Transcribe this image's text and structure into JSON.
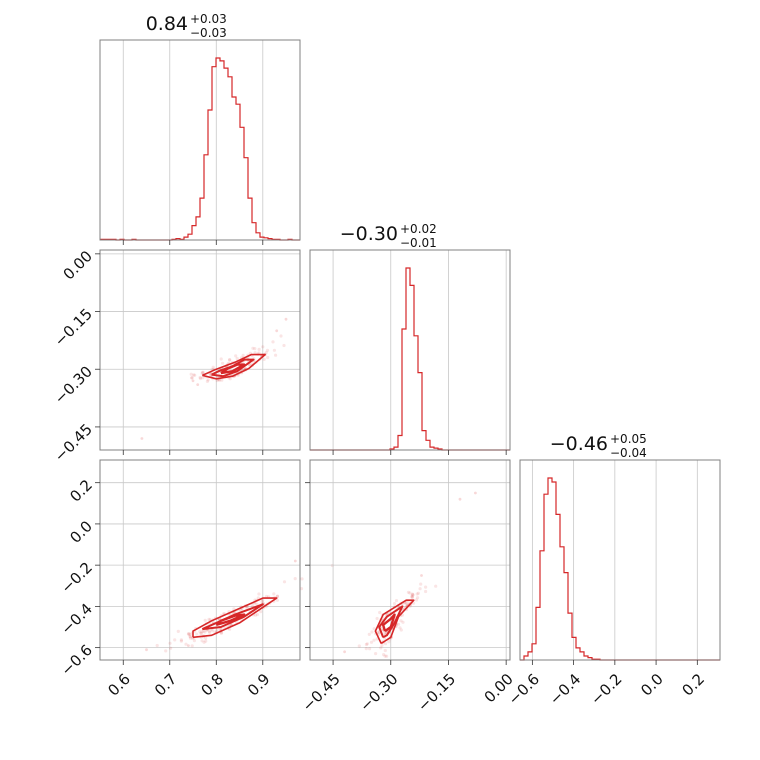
{
  "chart_data": {
    "type": "corner",
    "color": "#d62728",
    "parameters": [
      {
        "title": {
          "median": "0.84",
          "plus": "+0.03",
          "minus": "−0.03"
        },
        "range": [
          0.55,
          0.98
        ],
        "ticks": [
          {
            "value": 0.6,
            "label": "0.6"
          },
          {
            "value": 0.7,
            "label": "0.7"
          },
          {
            "value": 0.8,
            "label": "0.8"
          },
          {
            "value": 0.9,
            "label": "0.9"
          }
        ]
      },
      {
        "title": {
          "median": "−0.30",
          "plus": "+0.02",
          "minus": "−0.01"
        },
        "range": [
          -0.51,
          0.01
        ],
        "ticks": [
          {
            "value": -0.45,
            "label": "−0.45"
          },
          {
            "value": -0.3,
            "label": "−0.30"
          },
          {
            "value": -0.15,
            "label": "−0.15"
          },
          {
            "value": 0.0,
            "label": "0.00"
          }
        ]
      },
      {
        "title": {
          "median": "−0.46",
          "plus": "+0.05",
          "minus": "−0.04"
        },
        "range": [
          -0.66,
          0.31
        ],
        "ticks": [
          {
            "value": -0.6,
            "label": "−0.6"
          },
          {
            "value": -0.4,
            "label": "−0.4"
          },
          {
            "value": -0.2,
            "label": "−0.2"
          },
          {
            "value": 0.0,
            "label": "0.0"
          },
          {
            "value": 0.2,
            "label": "0.2"
          }
        ]
      }
    ],
    "histograms": [
      {
        "param": 0,
        "start": 0.55,
        "bin_width": 0.0086,
        "values": [
          1,
          1,
          1,
          1,
          0,
          1,
          0,
          0,
          1,
          0,
          0,
          0,
          0,
          0,
          0,
          0,
          0,
          0,
          1,
          2,
          1,
          4,
          8,
          20,
          32,
          58,
          118,
          180,
          240,
          252,
          248,
          238,
          226,
          198,
          188,
          156,
          114,
          58,
          24,
          10,
          4,
          3,
          2,
          1,
          1,
          0,
          0,
          1,
          0,
          0
        ]
      },
      {
        "param": 1,
        "start": -0.51,
        "bin_width": 0.0104,
        "values": [
          0,
          0,
          0,
          0,
          0,
          0,
          0,
          0,
          0,
          0,
          0,
          0,
          0,
          0,
          0,
          0,
          0,
          0,
          0,
          0,
          1,
          3,
          15,
          125,
          188,
          170,
          118,
          80,
          20,
          10,
          3,
          2,
          1,
          0,
          0,
          0,
          0,
          0,
          0,
          0,
          0,
          0,
          0,
          0,
          0,
          0,
          0,
          0,
          0,
          0
        ]
      },
      {
        "param": 2,
        "start": -0.66,
        "bin_width": 0.0194,
        "values": [
          0,
          5,
          10,
          20,
          65,
          135,
          205,
          225,
          220,
          180,
          140,
          108,
          58,
          28,
          15,
          10,
          5,
          3,
          1,
          1,
          0,
          0,
          0,
          0,
          0,
          0,
          0,
          0,
          0,
          0,
          0,
          0,
          0,
          0,
          0,
          0,
          0,
          0,
          0,
          0,
          0,
          0,
          0,
          0,
          0,
          0,
          0,
          0,
          0,
          0
        ]
      }
    ],
    "pairs": [
      {
        "x_param": 0,
        "y_param": 1,
        "center": [
          0.835,
          -0.305
        ],
        "contours": [
          [
            [
              0.77,
              -0.316
            ],
            [
              0.8,
              -0.325
            ],
            [
              0.835,
              -0.318
            ],
            [
              0.87,
              -0.298
            ],
            [
              0.905,
              -0.262
            ],
            [
              0.875,
              -0.262
            ],
            [
              0.84,
              -0.282
            ],
            [
              0.8,
              -0.3
            ],
            [
              0.77,
              -0.316
            ]
          ],
          [
            [
              0.79,
              -0.314
            ],
            [
              0.815,
              -0.318
            ],
            [
              0.845,
              -0.305
            ],
            [
              0.88,
              -0.275
            ],
            [
              0.86,
              -0.275
            ],
            [
              0.835,
              -0.292
            ],
            [
              0.805,
              -0.305
            ],
            [
              0.79,
              -0.314
            ]
          ],
          [
            [
              0.81,
              -0.31
            ],
            [
              0.835,
              -0.305
            ],
            [
              0.86,
              -0.288
            ],
            [
              0.845,
              -0.288
            ],
            [
              0.825,
              -0.298
            ],
            [
              0.81,
              -0.31
            ]
          ]
        ],
        "outliers": [
          [
            0.64,
            -0.48
          ],
          [
            0.93,
            -0.2
          ],
          [
            0.95,
            -0.17
          ],
          [
            0.75,
            -0.33
          ],
          [
            0.76,
            -0.34
          ]
        ]
      },
      {
        "x_param": 0,
        "y_param": 2,
        "center": [
          0.835,
          -0.46
        ],
        "contours": [
          [
            [
              0.75,
              -0.55
            ],
            [
              0.79,
              -0.54
            ],
            [
              0.85,
              -0.48
            ],
            [
              0.93,
              -0.36
            ],
            [
              0.9,
              -0.36
            ],
            [
              0.84,
              -0.42
            ],
            [
              0.79,
              -0.47
            ],
            [
              0.75,
              -0.52
            ],
            [
              0.75,
              -0.55
            ]
          ],
          [
            [
              0.77,
              -0.51
            ],
            [
              0.81,
              -0.5
            ],
            [
              0.86,
              -0.45
            ],
            [
              0.9,
              -0.39
            ],
            [
              0.84,
              -0.44
            ],
            [
              0.8,
              -0.48
            ],
            [
              0.77,
              -0.51
            ]
          ],
          [
            [
              0.8,
              -0.49
            ],
            [
              0.83,
              -0.47
            ],
            [
              0.86,
              -0.44
            ],
            [
              0.84,
              -0.445
            ],
            [
              0.81,
              -0.47
            ],
            [
              0.8,
              -0.49
            ]
          ]
        ],
        "outliers": [
          [
            0.97,
            -0.18
          ],
          [
            0.65,
            -0.61
          ],
          [
            0.74,
            -0.59
          ]
        ]
      },
      {
        "x_param": 1,
        "y_param": 2,
        "center": [
          -0.3,
          -0.46
        ],
        "contours": [
          [
            [
              -0.325,
              -0.58
            ],
            [
              -0.34,
              -0.52
            ],
            [
              -0.32,
              -0.44
            ],
            [
              -0.26,
              -0.37
            ],
            [
              -0.24,
              -0.37
            ],
            [
              -0.28,
              -0.45
            ],
            [
              -0.3,
              -0.55
            ],
            [
              -0.325,
              -0.58
            ]
          ],
          [
            [
              -0.32,
              -0.55
            ],
            [
              -0.33,
              -0.5
            ],
            [
              -0.31,
              -0.45
            ],
            [
              -0.27,
              -0.4
            ],
            [
              -0.29,
              -0.48
            ],
            [
              -0.31,
              -0.54
            ],
            [
              -0.32,
              -0.55
            ]
          ],
          [
            [
              -0.315,
              -0.52
            ],
            [
              -0.32,
              -0.49
            ],
            [
              -0.3,
              -0.46
            ],
            [
              -0.29,
              -0.44
            ],
            [
              -0.3,
              -0.5
            ],
            [
              -0.315,
              -0.52
            ]
          ]
        ],
        "outliers": [
          [
            -0.12,
            0.12
          ],
          [
            -0.08,
            0.15
          ],
          [
            -0.42,
            -0.62
          ],
          [
            -0.22,
            -0.25
          ]
        ]
      }
    ]
  }
}
